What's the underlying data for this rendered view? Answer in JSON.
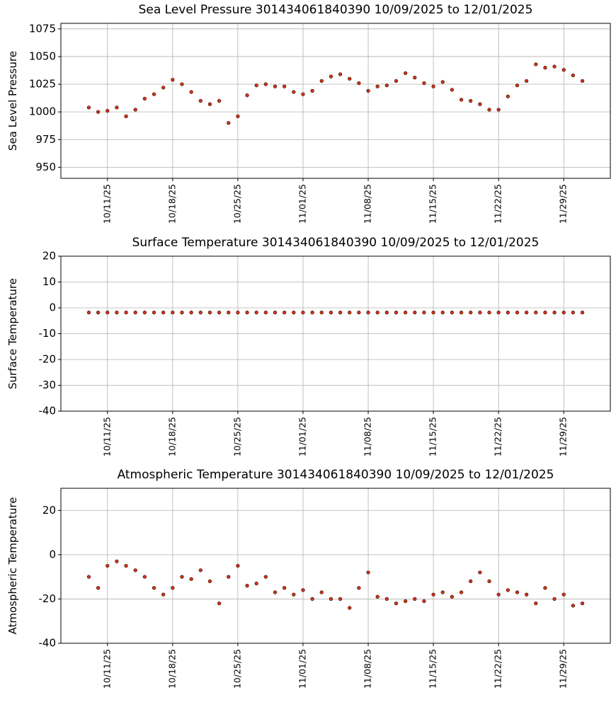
{
  "chart_data": [
    {
      "type": "scatter",
      "title": "Sea Level Pressure 301434061840390  10/09/2025 to 12/01/2025",
      "y_label": "Sea Level Pressure",
      "x": [
        "2025-10-09",
        "2025-10-10",
        "2025-10-11",
        "2025-10-12",
        "2025-10-13",
        "2025-10-14",
        "2025-10-15",
        "2025-10-16",
        "2025-10-17",
        "2025-10-18",
        "2025-10-19",
        "2025-10-20",
        "2025-10-21",
        "2025-10-22",
        "2025-10-23",
        "2025-10-24",
        "2025-10-25",
        "2025-10-26",
        "2025-10-27",
        "2025-10-28",
        "2025-10-29",
        "2025-10-30",
        "2025-10-31",
        "2025-11-01",
        "2025-11-02",
        "2025-11-03",
        "2025-11-04",
        "2025-11-05",
        "2025-11-06",
        "2025-11-07",
        "2025-11-08",
        "2025-11-09",
        "2025-11-10",
        "2025-11-11",
        "2025-11-12",
        "2025-11-13",
        "2025-11-14",
        "2025-11-15",
        "2025-11-16",
        "2025-11-17",
        "2025-11-18",
        "2025-11-19",
        "2025-11-20",
        "2025-11-21",
        "2025-11-22",
        "2025-11-23",
        "2025-11-24",
        "2025-11-25",
        "2025-11-26",
        "2025-11-27",
        "2025-11-28",
        "2025-11-29",
        "2025-11-30",
        "2025-12-01"
      ],
      "values": [
        1004,
        1000,
        1001,
        1004,
        996,
        1002,
        1012,
        1016,
        1022,
        1029,
        1025,
        1018,
        1010,
        1007,
        1010,
        990,
        996,
        1015,
        1024,
        1025,
        1023,
        1023,
        1018,
        1016,
        1019,
        1028,
        1032,
        1034,
        1030,
        1026,
        1019,
        1023,
        1024,
        1028,
        1035,
        1031,
        1026,
        1023,
        1027,
        1020,
        1011,
        1010,
        1007,
        1002,
        1002,
        1014,
        1024,
        1028,
        1043,
        1040,
        1041,
        1038,
        1033,
        1028
      ],
      "color": "#d9301a",
      "edgecolor": "#3b1a08",
      "xlim": [
        "2025-10-06",
        "2025-12-04"
      ],
      "xticks": [
        {
          "value": "2025-10-11",
          "label": "10/11/25"
        },
        {
          "value": "2025-10-18",
          "label": "10/18/25"
        },
        {
          "value": "2025-10-25",
          "label": "10/25/25"
        },
        {
          "value": "2025-11-01",
          "label": "11/01/25"
        },
        {
          "value": "2025-11-08",
          "label": "11/08/25"
        },
        {
          "value": "2025-11-15",
          "label": "11/15/25"
        },
        {
          "value": "2025-11-22",
          "label": "11/22/25"
        },
        {
          "value": "2025-11-29",
          "label": "11/29/25"
        }
      ],
      "ylim": [
        940,
        1080
      ],
      "yticks": [
        950,
        975,
        1000,
        1025,
        1050,
        1075
      ],
      "grid": true
    },
    {
      "type": "scatter",
      "title": "Surface Temperature 301434061840390  10/09/2025 to 12/01/2025",
      "y_label": "Surface Temperature",
      "x": [
        "2025-10-09",
        "2025-10-10",
        "2025-10-11",
        "2025-10-12",
        "2025-10-13",
        "2025-10-14",
        "2025-10-15",
        "2025-10-16",
        "2025-10-17",
        "2025-10-18",
        "2025-10-19",
        "2025-10-20",
        "2025-10-21",
        "2025-10-22",
        "2025-10-23",
        "2025-10-24",
        "2025-10-25",
        "2025-10-26",
        "2025-10-27",
        "2025-10-28",
        "2025-10-29",
        "2025-10-30",
        "2025-10-31",
        "2025-11-01",
        "2025-11-02",
        "2025-11-03",
        "2025-11-04",
        "2025-11-05",
        "2025-11-06",
        "2025-11-07",
        "2025-11-08",
        "2025-11-09",
        "2025-11-10",
        "2025-11-11",
        "2025-11-12",
        "2025-11-13",
        "2025-11-14",
        "2025-11-15",
        "2025-11-16",
        "2025-11-17",
        "2025-11-18",
        "2025-11-19",
        "2025-11-20",
        "2025-11-21",
        "2025-11-22",
        "2025-11-23",
        "2025-11-24",
        "2025-11-25",
        "2025-11-26",
        "2025-11-27",
        "2025-11-28",
        "2025-11-29",
        "2025-11-30",
        "2025-12-01"
      ],
      "values": [
        -1.8,
        -1.8,
        -1.8,
        -1.8,
        -1.8,
        -1.8,
        -1.8,
        -1.8,
        -1.8,
        -1.8,
        -1.8,
        -1.8,
        -1.8,
        -1.8,
        -1.8,
        -1.8,
        -1.8,
        -1.8,
        -1.8,
        -1.8,
        -1.8,
        -1.8,
        -1.8,
        -1.8,
        -1.8,
        -1.8,
        -1.8,
        -1.8,
        -1.8,
        -1.8,
        -1.8,
        -1.8,
        -1.8,
        -1.8,
        -1.8,
        -1.8,
        -1.8,
        -1.8,
        -1.8,
        -1.8,
        -1.8,
        -1.8,
        -1.8,
        -1.8,
        -1.8,
        -1.8,
        -1.8,
        -1.8,
        -1.8,
        -1.8,
        -1.8,
        -1.8,
        -1.8,
        -1.8
      ],
      "color": "#d9301a",
      "edgecolor": "#3b1a08",
      "xlim": [
        "2025-10-06",
        "2025-12-04"
      ],
      "xticks": [
        {
          "value": "2025-10-11",
          "label": "10/11/25"
        },
        {
          "value": "2025-10-18",
          "label": "10/18/25"
        },
        {
          "value": "2025-10-25",
          "label": "10/25/25"
        },
        {
          "value": "2025-11-01",
          "label": "11/01/25"
        },
        {
          "value": "2025-11-08",
          "label": "11/08/25"
        },
        {
          "value": "2025-11-15",
          "label": "11/15/25"
        },
        {
          "value": "2025-11-22",
          "label": "11/22/25"
        },
        {
          "value": "2025-11-29",
          "label": "11/29/25"
        }
      ],
      "ylim": [
        -40,
        20
      ],
      "yticks": [
        -40,
        -30,
        -20,
        -10,
        0,
        10,
        20
      ],
      "grid": true
    },
    {
      "type": "scatter",
      "title": "Atmospheric Temperature 301434061840390  10/09/2025 to 12/01/2025",
      "y_label": "Atmospheric Temperature",
      "x": [
        "2025-10-09",
        "2025-10-10",
        "2025-10-11",
        "2025-10-12",
        "2025-10-13",
        "2025-10-14",
        "2025-10-15",
        "2025-10-16",
        "2025-10-17",
        "2025-10-18",
        "2025-10-19",
        "2025-10-20",
        "2025-10-21",
        "2025-10-22",
        "2025-10-23",
        "2025-10-24",
        "2025-10-25",
        "2025-10-26",
        "2025-10-27",
        "2025-10-28",
        "2025-10-29",
        "2025-10-30",
        "2025-10-31",
        "2025-11-01",
        "2025-11-02",
        "2025-11-03",
        "2025-11-04",
        "2025-11-05",
        "2025-11-06",
        "2025-11-07",
        "2025-11-08",
        "2025-11-09",
        "2025-11-10",
        "2025-11-11",
        "2025-11-12",
        "2025-11-13",
        "2025-11-14",
        "2025-11-15",
        "2025-11-16",
        "2025-11-17",
        "2025-11-18",
        "2025-11-19",
        "2025-11-20",
        "2025-11-21",
        "2025-11-22",
        "2025-11-23",
        "2025-11-24",
        "2025-11-25",
        "2025-11-26",
        "2025-11-27",
        "2025-11-28",
        "2025-11-29",
        "2025-11-30",
        "2025-12-01"
      ],
      "values": [
        -10,
        -15,
        -5,
        -3,
        -5,
        -7,
        -10,
        -15,
        -18,
        -15,
        -10,
        -11,
        -7,
        -12,
        -22,
        -10,
        -5,
        -14,
        -13,
        -10,
        -17,
        -15,
        -18,
        -16,
        -20,
        -17,
        -20,
        -20,
        -24,
        -15,
        -8,
        -19,
        -20,
        -22,
        -21,
        -20,
        -21,
        -18,
        -17,
        -19,
        -17,
        -12,
        -8,
        -12,
        -18,
        -16,
        -17,
        -18,
        -22,
        -15,
        -20,
        -18,
        -23,
        -22
      ],
      "color": "#d9301a",
      "edgecolor": "#3b1a08",
      "xlim": [
        "2025-10-06",
        "2025-12-04"
      ],
      "xticks": [
        {
          "value": "2025-10-11",
          "label": "10/11/25"
        },
        {
          "value": "2025-10-18",
          "label": "10/18/25"
        },
        {
          "value": "2025-10-25",
          "label": "10/25/25"
        },
        {
          "value": "2025-11-01",
          "label": "11/01/25"
        },
        {
          "value": "2025-11-08",
          "label": "11/08/25"
        },
        {
          "value": "2025-11-15",
          "label": "11/15/25"
        },
        {
          "value": "2025-11-22",
          "label": "11/22/25"
        },
        {
          "value": "2025-11-29",
          "label": "11/29/25"
        }
      ],
      "ylim": [
        -40,
        30
      ],
      "yticks": [
        -40,
        -20,
        0,
        20
      ],
      "grid": true
    }
  ]
}
